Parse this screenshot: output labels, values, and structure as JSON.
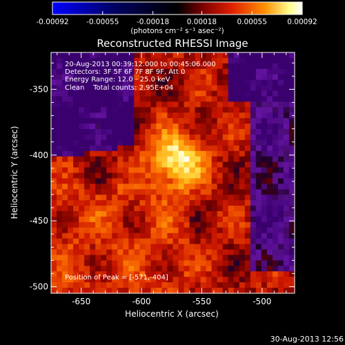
{
  "chart_data": {
    "type": "heatmap",
    "title": "Reconstructed RHESSI Image",
    "xlabel": "Heliocentric X (arcsec)",
    "ylabel": "Heliocentric Y (arcsec)",
    "xlim": [
      -675,
      -473
    ],
    "ylim": [
      -505,
      -322
    ],
    "xticks": [
      -650,
      -600,
      -550,
      -500
    ],
    "xtick_labels": [
      "-650",
      "-600",
      "-550",
      "-500"
    ],
    "yticks": [
      -500,
      -450,
      -400,
      -350
    ],
    "ytick_labels": [
      "-500",
      "-450",
      "-400",
      "-350"
    ],
    "colorbar": {
      "min": -0.00092,
      "max": 0.00092,
      "ticks": [
        -0.00092,
        -0.00055,
        -0.00018,
        0.00018,
        0.00055,
        0.00092
      ],
      "tick_labels": [
        "-0.00092",
        "-0.00055",
        "-0.00018",
        "0.00018",
        "0.00055",
        "0.00092"
      ],
      "units": "(photons cm⁻² s⁻¹ asec⁻²)",
      "colormap": [
        "#0000ff",
        "#000000",
        "#7a0000",
        "#e03000",
        "#ff9000",
        "#ffffaa",
        "#ffffff"
      ]
    },
    "annotations": [
      "20-Aug-2013 00:39:12.000 to 00:45:06.000",
      "Detectors: 3F 5F 6F 7F 8F 9F, Att 0",
      "Energy Range: 12.0 - 25.0 keV",
      "Clean    Total counts: 2.95E+04"
    ],
    "peak_label": "Position of Peak = [-571,-404]",
    "peak": [
      -571,
      -404
    ]
  },
  "footer": {
    "timestamp": "30-Aug-2013 12:56"
  }
}
